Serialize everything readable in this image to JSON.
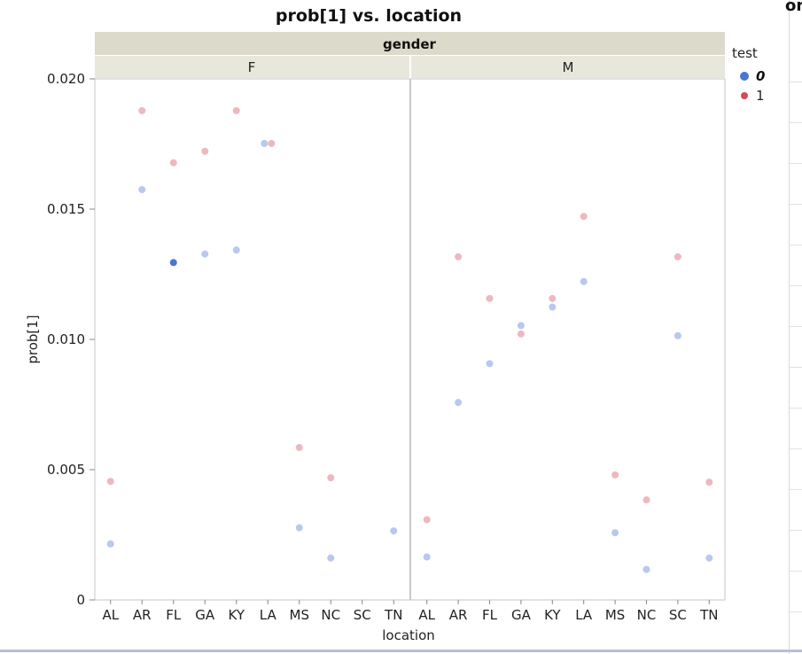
{
  "edge_text": "on",
  "chart_data": {
    "type": "scatter",
    "title": "prob[1] vs. location",
    "xlabel": "location",
    "ylabel": "prob[1]",
    "ylim": [
      0,
      0.02
    ],
    "yticks": [
      {
        "value": 0,
        "label": "0"
      },
      {
        "value": 0.005,
        "label": "0.005"
      },
      {
        "value": 0.01,
        "label": "0.010"
      },
      {
        "value": 0.015,
        "label": "0.015"
      },
      {
        "value": 0.02,
        "label": "0.020"
      }
    ],
    "grouping": {
      "label": "gender",
      "panels": [
        "F",
        "M"
      ]
    },
    "categories": [
      "AL",
      "AR",
      "FL",
      "GA",
      "KY",
      "LA",
      "MS",
      "NC",
      "SC",
      "TN"
    ],
    "legend": {
      "title": "test",
      "position": "right"
    },
    "series": [
      {
        "name": "0",
        "color": "#4a74d6",
        "faded_color": "#b8c8ee",
        "selected": true,
        "points": [
          {
            "panel": "F",
            "x": "AL",
            "y": 0.00215
          },
          {
            "panel": "F",
            "x": "AR",
            "y": 0.01575
          },
          {
            "panel": "F",
            "x": "FL",
            "y": 0.01295,
            "highlighted": true
          },
          {
            "panel": "F",
            "x": "GA",
            "y": 0.01328
          },
          {
            "panel": "F",
            "x": "KY",
            "y": 0.01343
          },
          {
            "panel": "F",
            "x": "LA",
            "y": 0.01752
          },
          {
            "panel": "F",
            "x": "MS",
            "y": 0.00277
          },
          {
            "panel": "F",
            "x": "NC",
            "y": 0.00161
          },
          {
            "panel": "F",
            "x": "TN",
            "y": 0.00265
          },
          {
            "panel": "M",
            "x": "AL",
            "y": 0.00165
          },
          {
            "panel": "M",
            "x": "AR",
            "y": 0.00758
          },
          {
            "panel": "M",
            "x": "FL",
            "y": 0.00907
          },
          {
            "panel": "M",
            "x": "GA",
            "y": 0.01053
          },
          {
            "panel": "M",
            "x": "KY",
            "y": 0.01124
          },
          {
            "panel": "M",
            "x": "LA",
            "y": 0.01222
          },
          {
            "panel": "M",
            "x": "MS",
            "y": 0.00258
          },
          {
            "panel": "M",
            "x": "NC",
            "y": 0.00117
          },
          {
            "panel": "M",
            "x": "SC",
            "y": 0.01014
          },
          {
            "panel": "M",
            "x": "TN",
            "y": 0.00161
          }
        ]
      },
      {
        "name": "1",
        "color": "#d84a55",
        "faded_color": "#eeb8c0",
        "selected": false,
        "points": [
          {
            "panel": "F",
            "x": "AL",
            "y": 0.00455
          },
          {
            "panel": "F",
            "x": "AR",
            "y": 0.01878
          },
          {
            "panel": "F",
            "x": "FL",
            "y": 0.01678
          },
          {
            "panel": "F",
            "x": "GA",
            "y": 0.01722
          },
          {
            "panel": "F",
            "x": "KY",
            "y": 0.01878
          },
          {
            "panel": "F",
            "x": "LA",
            "y": 0.01752
          },
          {
            "panel": "F",
            "x": "MS",
            "y": 0.00585
          },
          {
            "panel": "F",
            "x": "NC",
            "y": 0.00469
          },
          {
            "panel": "M",
            "x": "AL",
            "y": 0.00308
          },
          {
            "panel": "M",
            "x": "AR",
            "y": 0.01317
          },
          {
            "panel": "M",
            "x": "FL",
            "y": 0.01157
          },
          {
            "panel": "M",
            "x": "GA",
            "y": 0.01021
          },
          {
            "panel": "M",
            "x": "KY",
            "y": 0.01157
          },
          {
            "panel": "M",
            "x": "LA",
            "y": 0.01472
          },
          {
            "panel": "M",
            "x": "MS",
            "y": 0.0048
          },
          {
            "panel": "M",
            "x": "NC",
            "y": 0.00384
          },
          {
            "panel": "M",
            "x": "SC",
            "y": 0.01317
          },
          {
            "panel": "M",
            "x": "TN",
            "y": 0.00452
          }
        ]
      }
    ]
  }
}
